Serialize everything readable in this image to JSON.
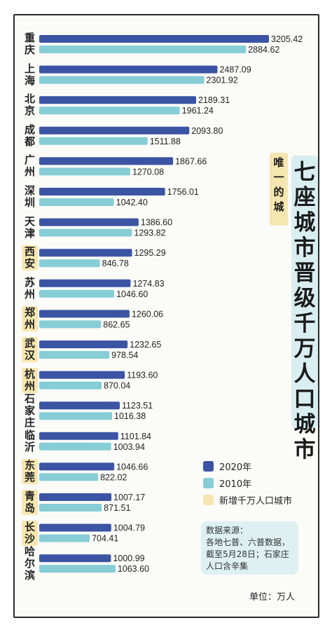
{
  "chart_data": {
    "type": "bar",
    "orientation": "horizontal",
    "title": "七座城市晋级千万人口城市",
    "tag": "唯一的城",
    "categories": [
      "重庆",
      "上海",
      "北京",
      "成都",
      "广州",
      "深圳",
      "天津",
      "西安",
      "苏州",
      "郑州",
      "武汉",
      "杭州",
      "石家庄",
      "临沂",
      "东莞",
      "青岛",
      "长沙",
      "哈尔滨"
    ],
    "category_lines": [
      [
        "重",
        "庆"
      ],
      [
        "上",
        "海"
      ],
      [
        "北",
        "京"
      ],
      [
        "成",
        "都"
      ],
      [
        "广",
        "州"
      ],
      [
        "深",
        "圳"
      ],
      [
        "天",
        "津"
      ],
      [
        "西",
        "安"
      ],
      [
        "苏",
        "州"
      ],
      [
        "郑",
        "州"
      ],
      [
        "武",
        "汉"
      ],
      [
        "杭",
        "州"
      ],
      [
        "石",
        "家",
        "庄"
      ],
      [
        "临",
        "沂"
      ],
      [
        "东",
        "莞"
      ],
      [
        "青",
        "岛"
      ],
      [
        "长",
        "沙"
      ],
      [
        "哈",
        "尔",
        "滨"
      ]
    ],
    "new_megacities": [
      "西安",
      "郑州",
      "武汉",
      "杭州",
      "东莞",
      "青岛",
      "长沙"
    ],
    "series": [
      {
        "name": "2020年",
        "color": "#3b54a4",
        "values": [
          3205.42,
          2487.09,
          2189.31,
          2093.8,
          1867.66,
          1756.01,
          1386.6,
          1295.29,
          1274.83,
          1260.06,
          1232.65,
          1193.6,
          1123.51,
          1101.84,
          1046.66,
          1007.17,
          1004.79,
          1000.99
        ],
        "labels": [
          "3205.42",
          "2487.09",
          "2189.31",
          "2093.80",
          "1867.66",
          "1756.01",
          "1386.60",
          "1295.29",
          "1274.83",
          "1260.06",
          "1232.65",
          "1193.60",
          "1123.51",
          "1101.84",
          "1046.66",
          "1007.17",
          "1004.79",
          "1000.99"
        ]
      },
      {
        "name": "2010年",
        "color": "#86cdd6",
        "values": [
          2884.62,
          2301.92,
          1961.24,
          1511.88,
          1270.08,
          1042.4,
          1293.82,
          846.78,
          1046.6,
          862.65,
          978.54,
          870.04,
          1016.38,
          1003.94,
          822.02,
          871.51,
          704.41,
          1063.6
        ],
        "labels": [
          "2884.62",
          "2301.92",
          "1961.24",
          "1511.88",
          "1270.08",
          "1042.40",
          "1293.82",
          "846.78",
          "1046.60",
          "862.65",
          "978.54",
          "870.04",
          "1016.38",
          "1003.94",
          "822.02",
          "871.51",
          "704.41",
          "1063.60"
        ]
      }
    ],
    "xlim": [
      0,
      3205.42
    ],
    "legend_placement": "bottom-right"
  },
  "legend": {
    "y2020": "2020年",
    "y2010": "2010年",
    "new": "新增千万人口城市",
    "color_new": "#f6e7b0"
  },
  "source": {
    "line1": "数据来源：",
    "line2": "各地七普、六普数据，",
    "line3": "截至5月28日；石家庄",
    "line4": "人口含辛集"
  },
  "unit": "单位：万人"
}
